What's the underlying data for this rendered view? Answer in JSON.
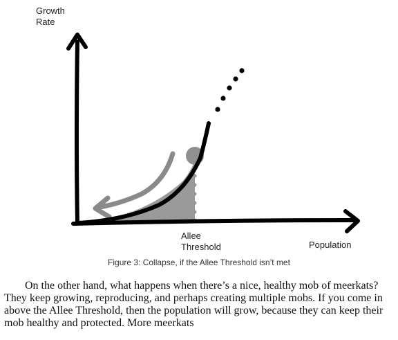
{
  "figure": {
    "y_axis_label": "Growth\nRate",
    "x_axis_label": "Population",
    "threshold_label": "Allee\nThreshold",
    "caption": "Figure 3: Collapse, if the Allee Threshold isn’t met",
    "colors": {
      "curve": "#000000",
      "shading": "#9a9a9a",
      "arrow": "#8a8a8a",
      "dots": "#9a9a9a"
    }
  },
  "body": {
    "paragraph": "On the other hand, what happens when there’s a nice, healthy mob of meerkats? They keep growing, reproducing, and perhaps creating multiple mobs. If you come in above the Allee Threshold, then the population will grow, because they can keep their mob healthy and protected. More meerkats"
  }
}
